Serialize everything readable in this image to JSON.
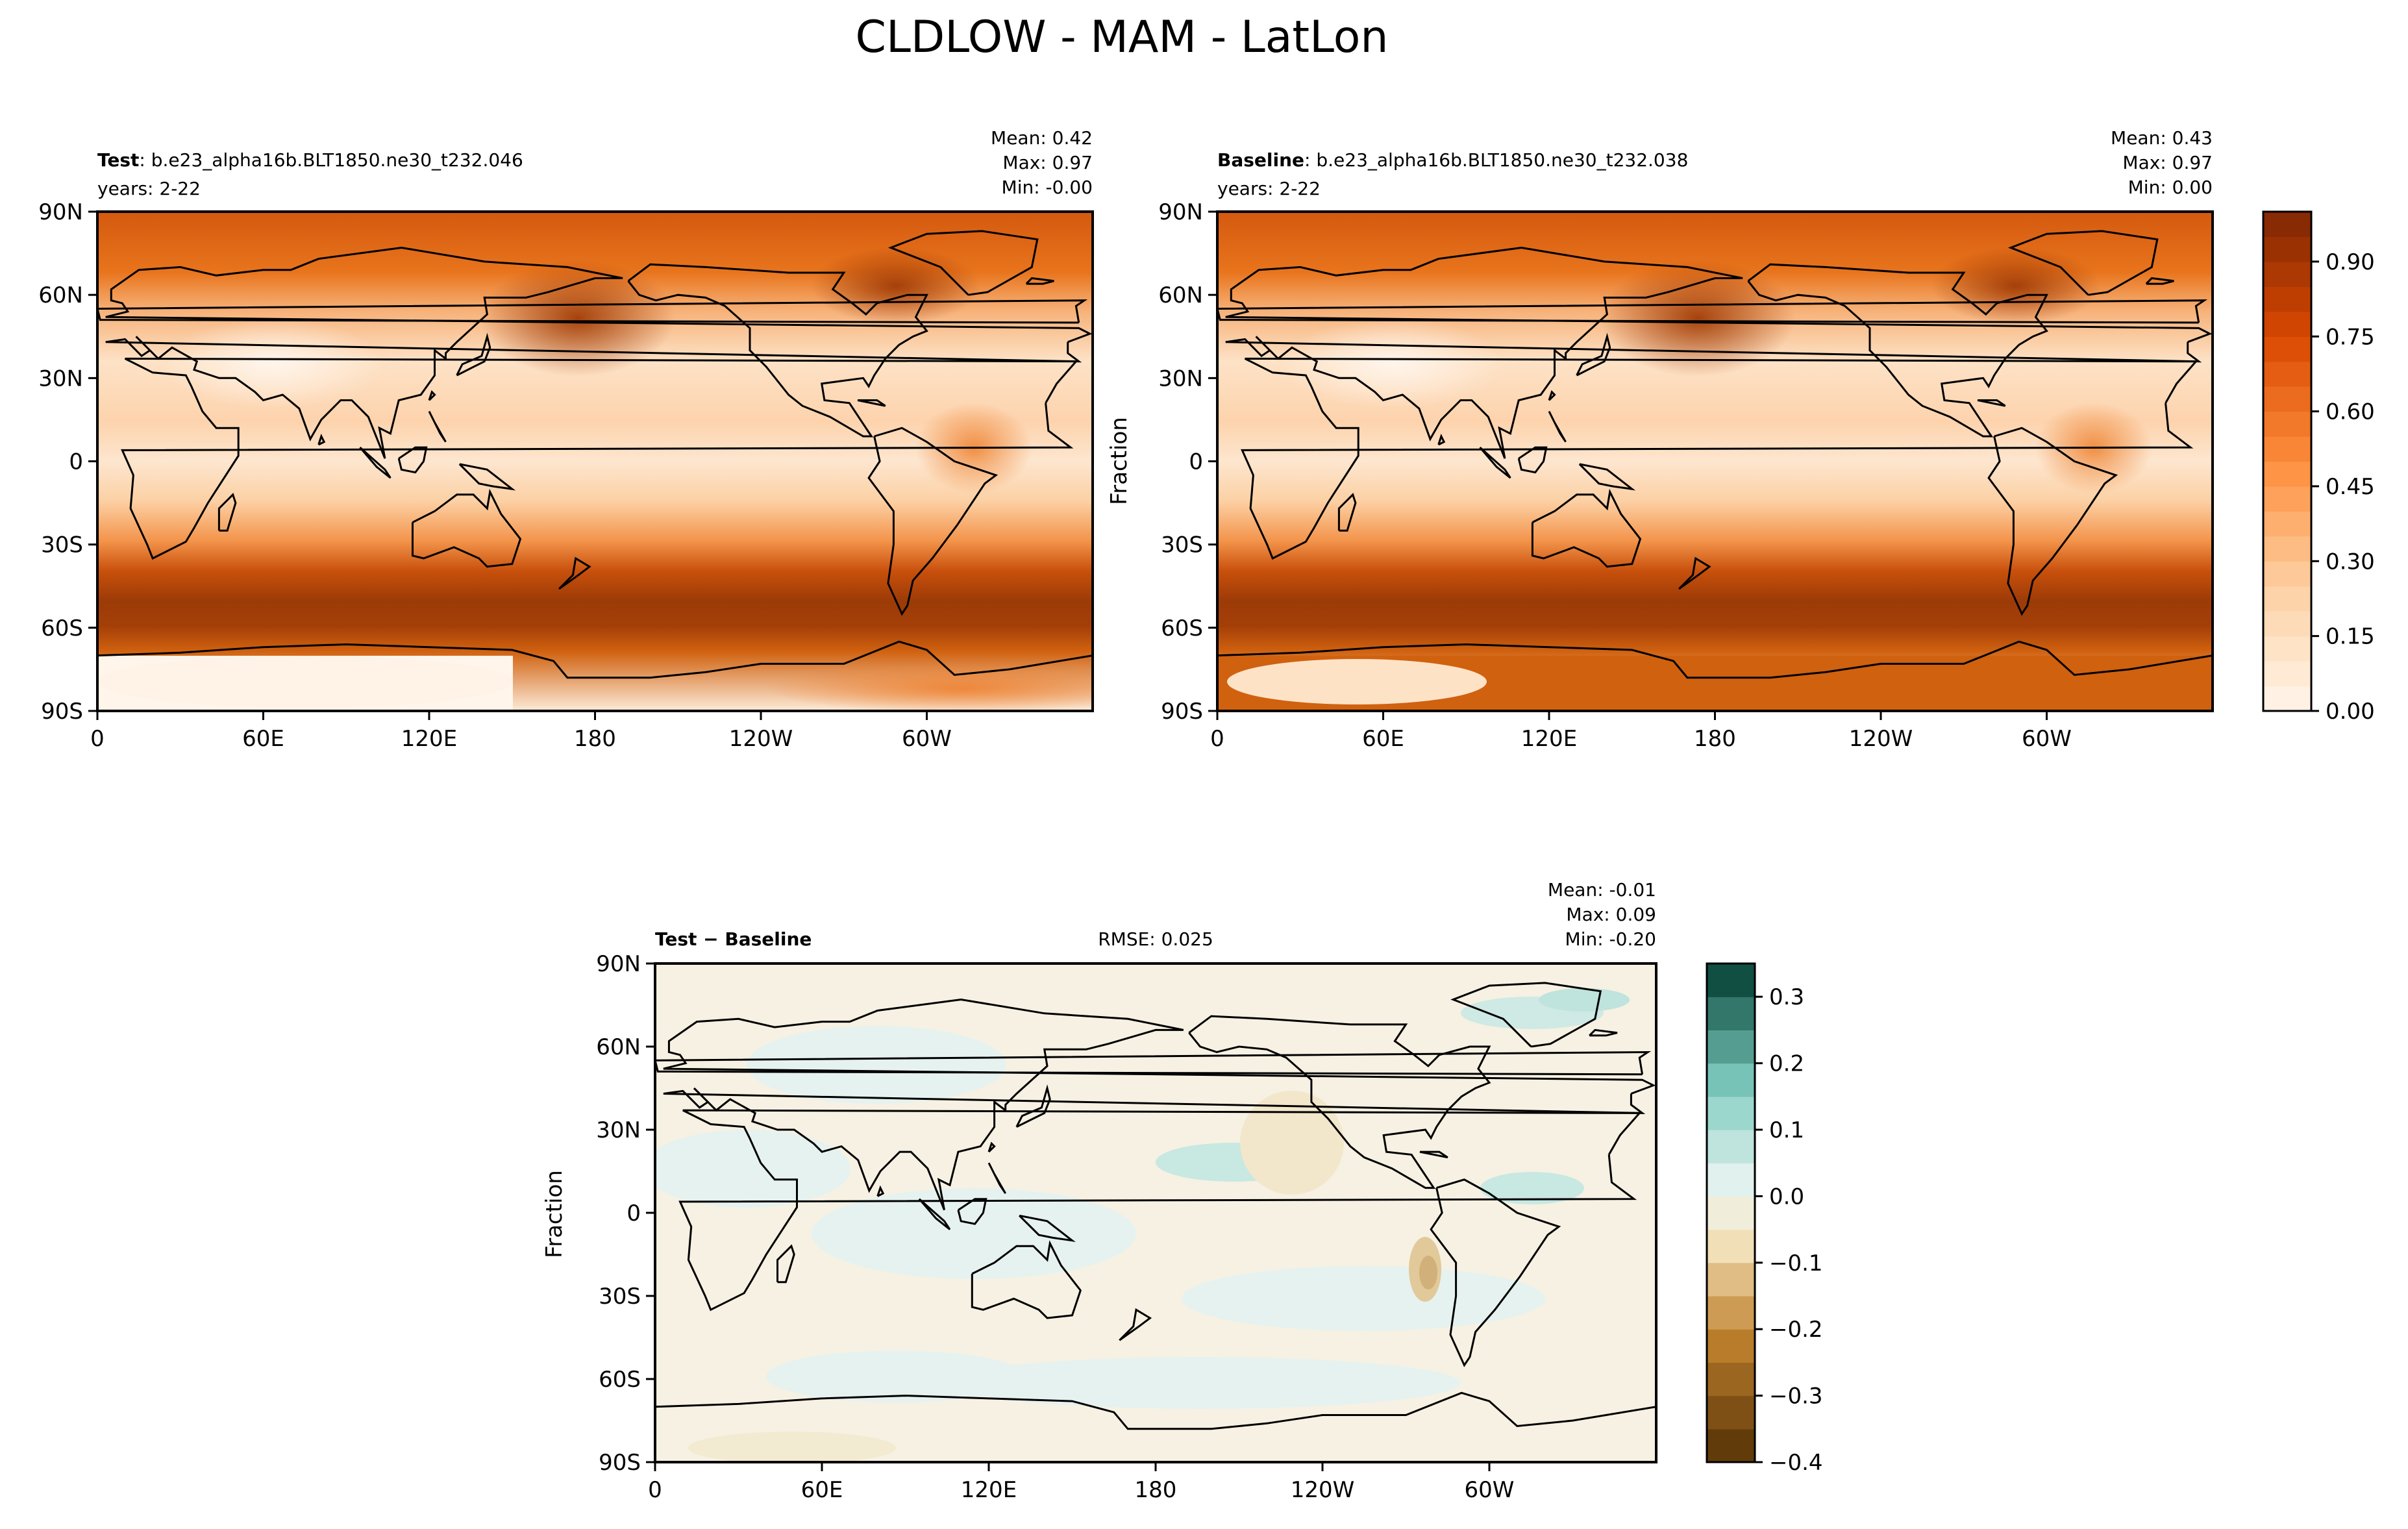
{
  "figure": {
    "title": "CLDLOW - MAM - LatLon"
  },
  "chart_data": [
    {
      "type": "heatmap",
      "panel": "test",
      "label_bold": "Test",
      "label_text": ": b.e23_alpha16b.BLT1850.ne30_t232.046",
      "years": "years: 2-22",
      "stats": {
        "mean": "Mean:  0.42",
        "max": "Max:  0.97",
        "min": "Min: -0.00"
      },
      "xticks": [
        "0",
        "60E",
        "120E",
        "180",
        "120W",
        "60W"
      ],
      "yticks": [
        "90N",
        "60N",
        "30N",
        "0",
        "30S",
        "60S",
        "90S"
      ],
      "ylabel": "",
      "colormap": "Oranges",
      "zlim": [
        0,
        1
      ]
    },
    {
      "type": "heatmap",
      "panel": "baseline",
      "label_bold": "Baseline",
      "label_text": ": b.e23_alpha16b.BLT1850.ne30_t232.038",
      "years": "years: 2-22",
      "stats": {
        "mean": "Mean:  0.43",
        "max": "Max:  0.97",
        "min": "Min:  0.00"
      },
      "xticks": [
        "0",
        "60E",
        "120E",
        "180",
        "120W",
        "60W"
      ],
      "yticks": [
        "90N",
        "60N",
        "30N",
        "0",
        "30S",
        "60S",
        "90S"
      ],
      "ylabel": "Fraction",
      "colormap": "Oranges",
      "zlim": [
        0,
        1
      ],
      "colorbar": {
        "ticks": [
          "0.00",
          "0.15",
          "0.30",
          "0.45",
          "0.60",
          "0.75",
          "0.90"
        ],
        "values": [
          0,
          0.15,
          0.3,
          0.45,
          0.6,
          0.75,
          0.9
        ],
        "range": [
          0,
          1
        ],
        "levels": 20
      }
    },
    {
      "type": "heatmap",
      "panel": "difference",
      "label_bold": "Test − Baseline",
      "rmse": "RMSE: 0.025",
      "stats": {
        "mean": "Mean: -0.01",
        "max": "Max:  0.09",
        "min": "Min: -0.20"
      },
      "xticks": [
        "0",
        "60E",
        "120E",
        "180",
        "120W",
        "60W"
      ],
      "yticks": [
        "90N",
        "60N",
        "30N",
        "0",
        "30S",
        "60S",
        "90S"
      ],
      "ylabel": "Fraction",
      "colormap": "BrBG",
      "colorbar": {
        "ticks": [
          "0.3",
          "0.2",
          "0.1",
          "0.0",
          "−0.1",
          "−0.2",
          "−0.3",
          "−0.4"
        ],
        "values": [
          0.3,
          0.2,
          0.1,
          0,
          -0.1,
          -0.2,
          -0.3,
          -0.4
        ],
        "range": [
          -0.4,
          0.35
        ],
        "levels": 15
      }
    }
  ]
}
